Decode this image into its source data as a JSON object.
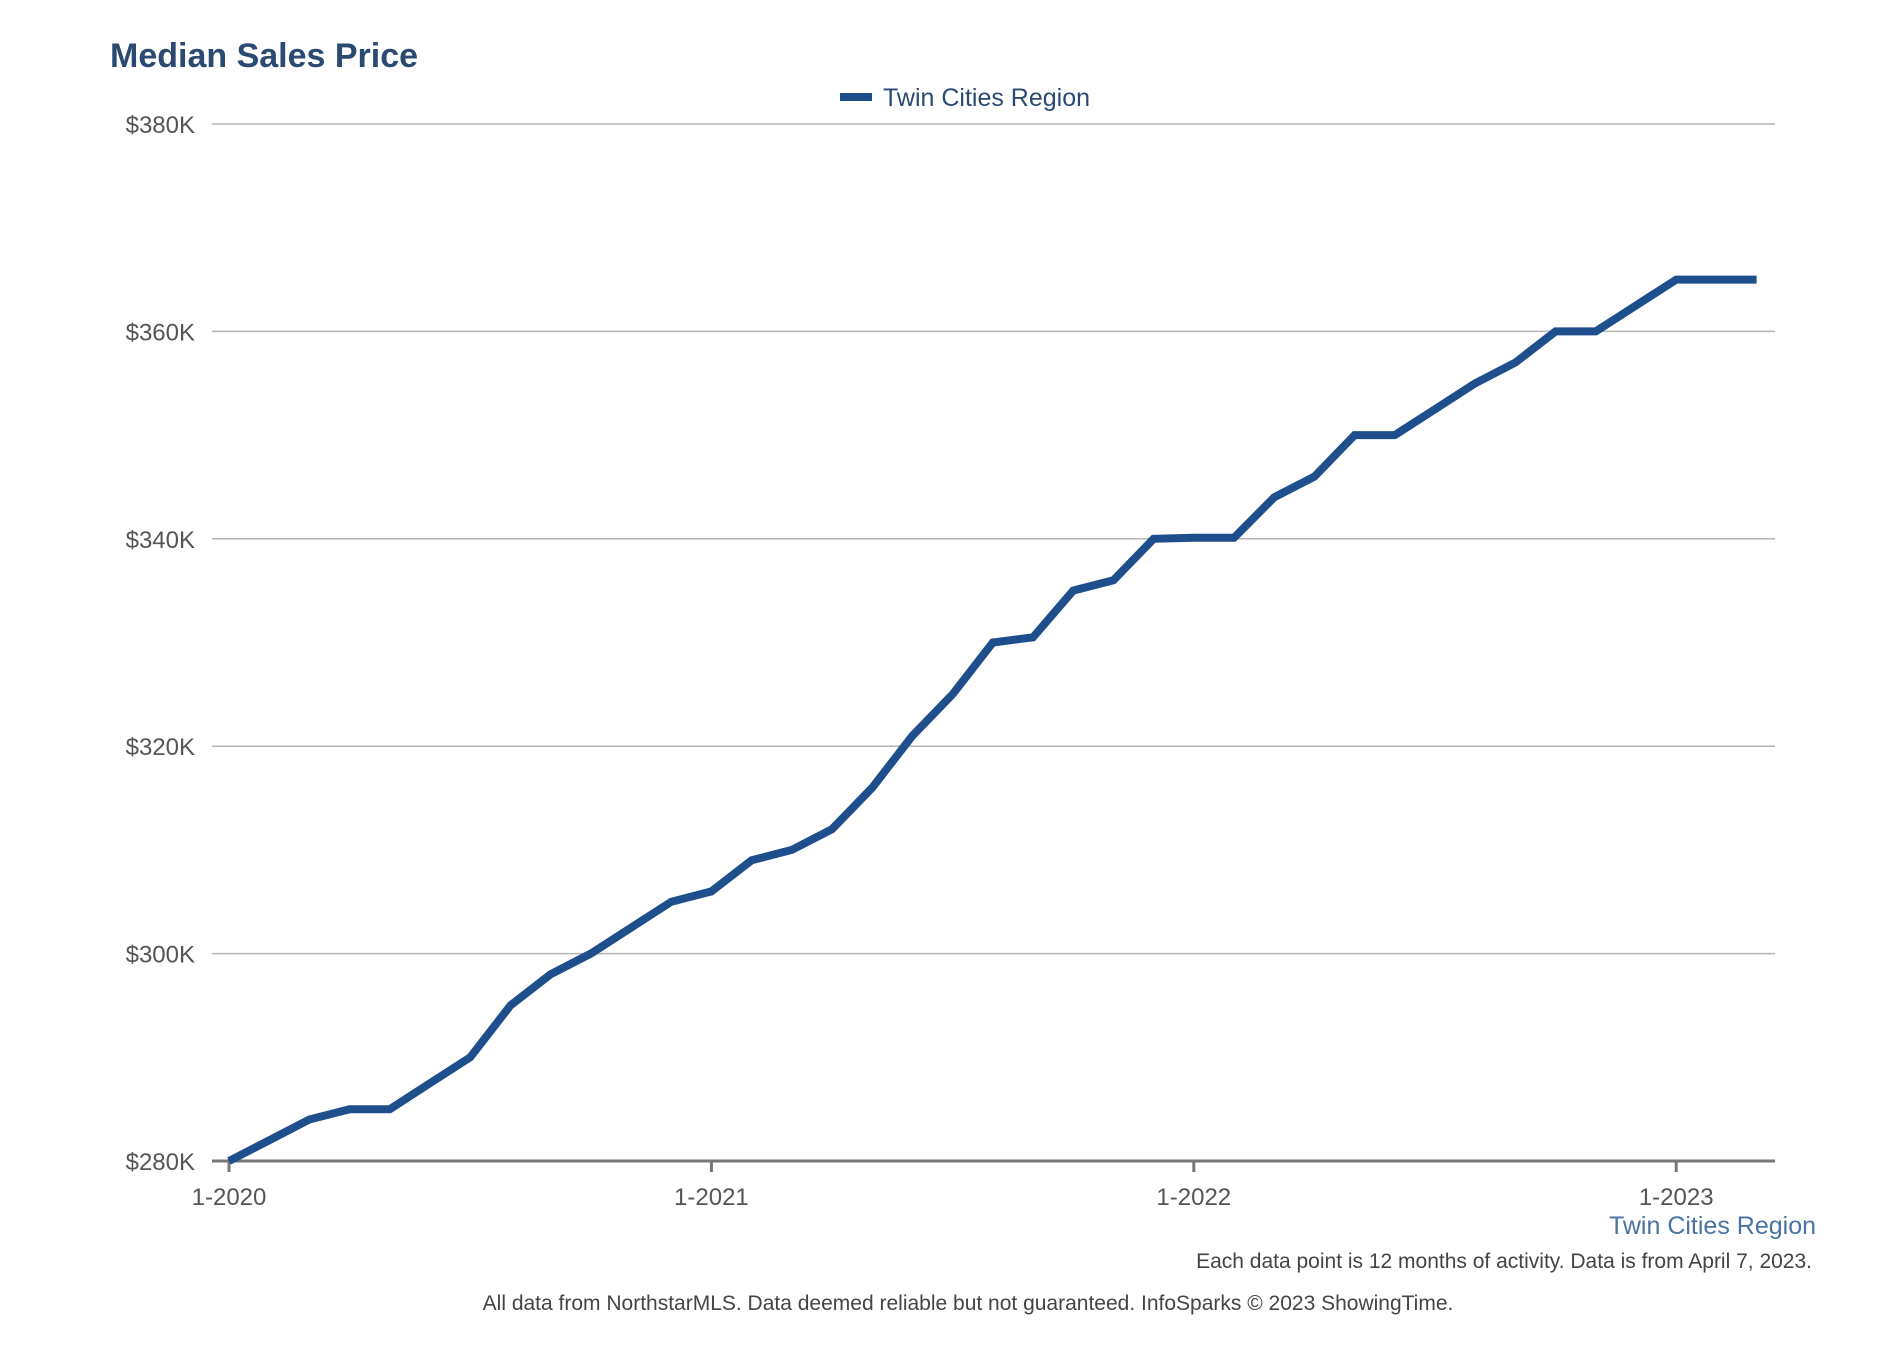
{
  "chart_data": {
    "type": "line",
    "title": "Median Sales Price",
    "xlabel": "",
    "ylabel": "",
    "legend": {
      "placement": "top-center",
      "entries": [
        "Twin Cities Region"
      ]
    },
    "grid": true,
    "ylim": [
      280000,
      380000
    ],
    "yticks": [
      {
        "value": 280000,
        "label": "$280K"
      },
      {
        "value": 300000,
        "label": "$300K"
      },
      {
        "value": 320000,
        "label": "$320K"
      },
      {
        "value": 340000,
        "label": "$340K"
      },
      {
        "value": 360000,
        "label": "$360K"
      },
      {
        "value": 380000,
        "label": "$380K"
      }
    ],
    "xlim": [
      "2020-01",
      "2023-04"
    ],
    "xticks": [
      {
        "value": "2020-01",
        "label": "1-2020"
      },
      {
        "value": "2021-01",
        "label": "1-2021"
      },
      {
        "value": "2022-01",
        "label": "1-2022"
      },
      {
        "value": "2023-01",
        "label": "1-2023"
      }
    ],
    "series": [
      {
        "name": "Twin Cities Region",
        "color": "#1f4e8c",
        "x": [
          "2020-01",
          "2020-02",
          "2020-03",
          "2020-04",
          "2020-05",
          "2020-06",
          "2020-07",
          "2020-08",
          "2020-09",
          "2020-10",
          "2020-11",
          "2020-12",
          "2021-01",
          "2021-02",
          "2021-03",
          "2021-04",
          "2021-05",
          "2021-06",
          "2021-07",
          "2021-08",
          "2021-09",
          "2021-10",
          "2021-11",
          "2021-12",
          "2022-01",
          "2022-02",
          "2022-03",
          "2022-04",
          "2022-05",
          "2022-06",
          "2022-07",
          "2022-08",
          "2022-09",
          "2022-10",
          "2022-11",
          "2022-12",
          "2023-01",
          "2023-02",
          "2023-03"
        ],
        "values": [
          280000,
          282000,
          284000,
          285000,
          285000,
          287500,
          290000,
          295000,
          298000,
          300000,
          302500,
          305000,
          306000,
          309000,
          310000,
          312000,
          316000,
          321000,
          325000,
          330000,
          330500,
          335000,
          336000,
          340000,
          340100,
          340100,
          344000,
          346000,
          350000,
          350000,
          352500,
          355000,
          357000,
          360000,
          360000,
          362500,
          365000,
          365000,
          365000
        ]
      }
    ]
  },
  "series_label": "Twin Cities Region",
  "notes": {
    "data_note": "Each data point is 12 months of activity. Data is from April 7, 2023.",
    "source_note": "All data from NorthstarMLS. Data deemed reliable but not guaranteed. InfoSparks © 2023 ShowingTime."
  }
}
